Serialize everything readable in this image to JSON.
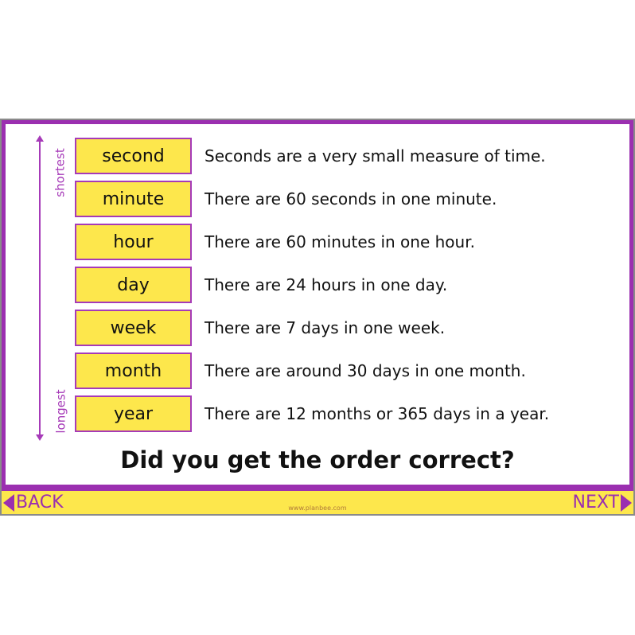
{
  "axis": {
    "top_label": "shortest",
    "bottom_label": "longest"
  },
  "rows": [
    {
      "unit": "second",
      "text": "Seconds are a very small measure of time."
    },
    {
      "unit": "minute",
      "text": "There are 60 seconds in one minute."
    },
    {
      "unit": "hour",
      "text": "There are 60 minutes in one hour."
    },
    {
      "unit": "day",
      "text": "There are 24 hours in one day."
    },
    {
      "unit": "week",
      "text": "There are 7 days in one week."
    },
    {
      "unit": "month",
      "text": "There are around 30 days in one month."
    },
    {
      "unit": "year",
      "text": "There are 12 months or 365 days in a year."
    }
  ],
  "question": "Did you get the order correct?",
  "nav": {
    "back": "BACK",
    "next": "NEXT",
    "site": "www.planbee.com"
  },
  "colors": {
    "purple": "#9b2fb0",
    "yellow": "#fde74c"
  }
}
